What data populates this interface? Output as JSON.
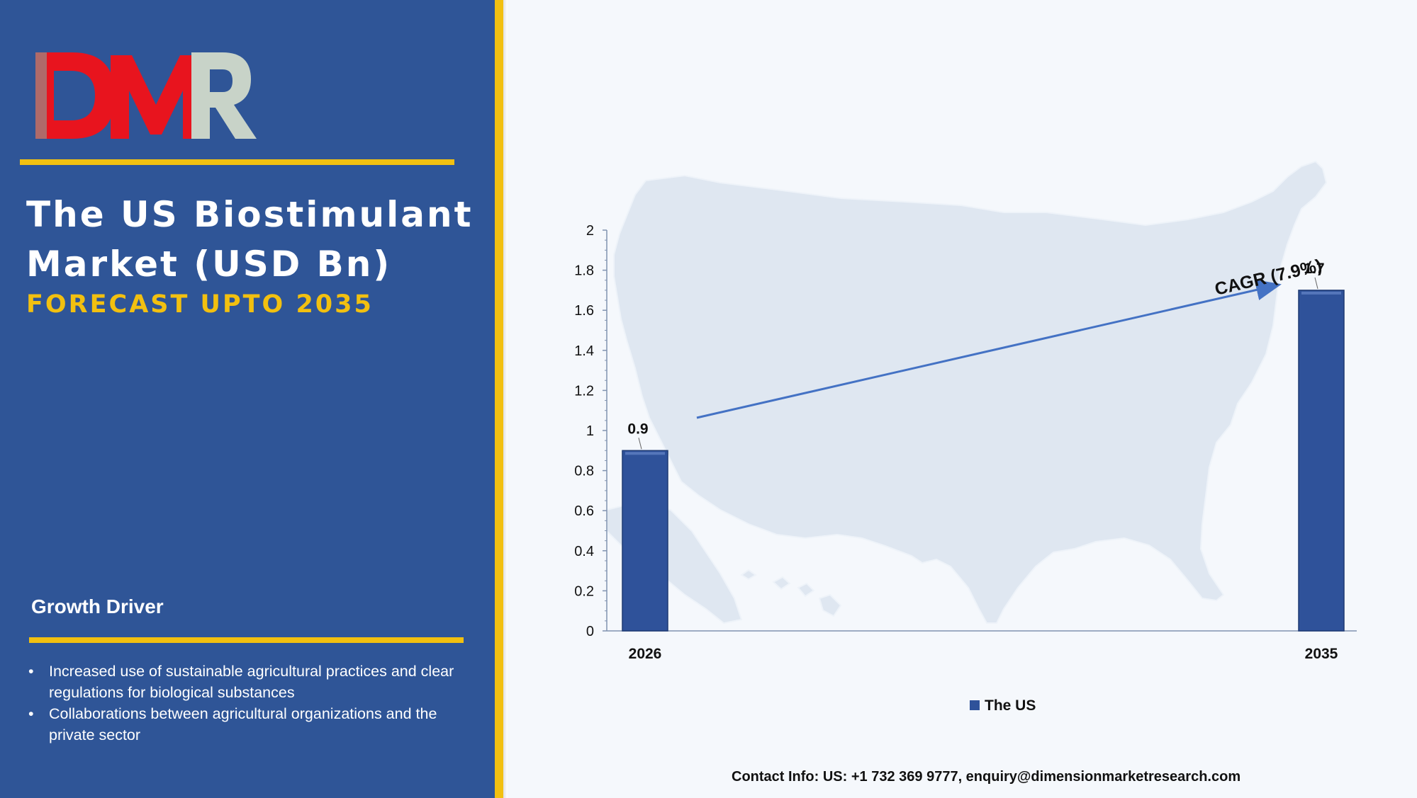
{
  "logo": {
    "text": "DMR",
    "colors": {
      "D": "#e8141e",
      "M": "#e8141e",
      "R": "#c8d3c8"
    }
  },
  "title": "The US Biostimulant Market (USD Bn)",
  "subtitle": "FORECAST UPTO 2035",
  "growth_driver": {
    "heading": "Growth Driver",
    "items": [
      "Increased use of sustainable agricultural practices and clear regulations for biological substances",
      "Collaborations between agricultural organizations and the private sector"
    ]
  },
  "contact": "Contact Info: US: +1 732 369 9777, enquiry@dimensionmarketresearch.com",
  "colors": {
    "panel": "#2f5597",
    "accent": "#f2c010",
    "bar": "#2f529a",
    "arrow": "#4472c4"
  },
  "background_graphic": "us-map-icon",
  "chart_data": {
    "type": "bar",
    "categories": [
      "2026",
      "2035"
    ],
    "series": [
      {
        "name": "The US",
        "values": [
          0.9,
          1.7
        ]
      }
    ],
    "data_labels": [
      "0.9",
      "1.7"
    ],
    "ylim": [
      0,
      2
    ],
    "yticks": [
      "0",
      "0.2",
      "0.4",
      "0.6",
      "0.8",
      "1",
      "1.2",
      "1.4",
      "1.6",
      "1.8",
      "2"
    ],
    "annotation": "CAGR (7.9%)",
    "legend": {
      "position": "bottom",
      "label": "The US"
    },
    "grid": false,
    "title": "",
    "xlabel": "",
    "ylabel": ""
  }
}
